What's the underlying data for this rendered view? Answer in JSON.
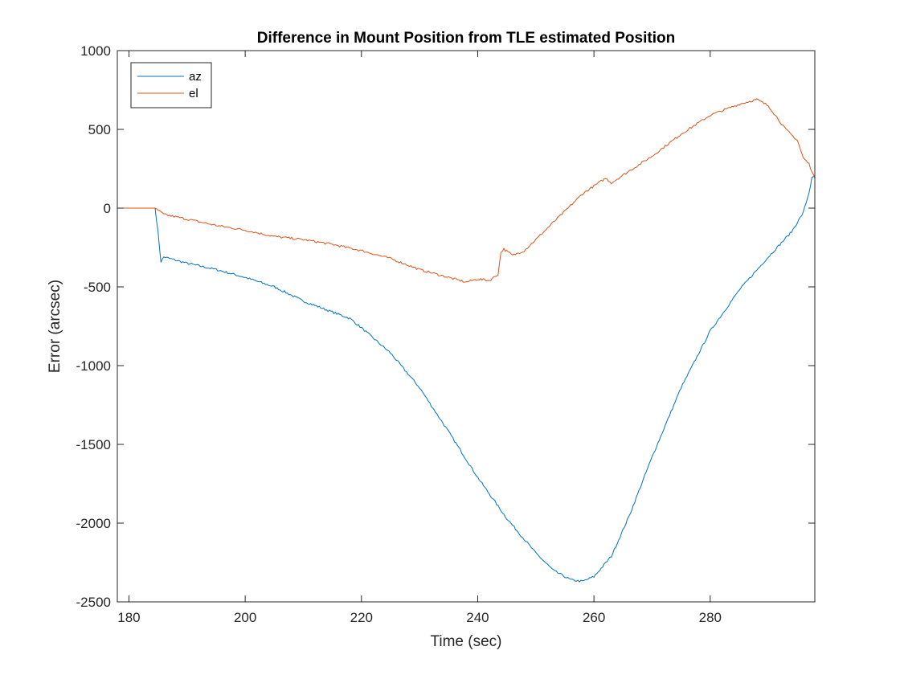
{
  "chart_data": {
    "type": "line",
    "title": "Difference in Mount Position from TLE estimated Position",
    "xlabel": "Time (sec)",
    "ylabel": "Error (arcsec)",
    "xlim": [
      178,
      298
    ],
    "ylim": [
      -2500,
      1000
    ],
    "xticks": [
      180,
      200,
      220,
      240,
      260,
      280
    ],
    "yticks": [
      -2500,
      -2000,
      -1500,
      -1000,
      -500,
      0,
      500,
      1000
    ],
    "xtick_labels": [
      "180",
      "200",
      "220",
      "240",
      "260",
      "280"
    ],
    "ytick_labels": [
      "-2500",
      "-2000",
      "-1500",
      "-1000",
      "-500",
      "0",
      "500",
      "1000"
    ],
    "grid": false,
    "legend_position": "top-left",
    "series": [
      {
        "name": "az",
        "color": "#0072BD",
        "x": [
          178,
          184.5,
          185,
          185.5,
          186,
          188,
          190,
          195,
          200,
          205,
          210,
          215,
          218,
          220,
          225,
          230,
          235,
          240,
          245,
          250,
          253,
          256,
          258,
          260,
          263,
          266,
          270,
          275,
          280,
          285,
          290,
          294,
          296,
          297,
          297.5,
          298
        ],
        "y": [
          0,
          0,
          -150,
          -340,
          -310,
          -330,
          -350,
          -390,
          -440,
          -500,
          -590,
          -660,
          -700,
          -760,
          -920,
          -1140,
          -1420,
          -1710,
          -1970,
          -2190,
          -2300,
          -2360,
          -2370,
          -2340,
          -2210,
          -1960,
          -1580,
          -1140,
          -780,
          -520,
          -310,
          -150,
          -30,
          100,
          190,
          200
        ]
      },
      {
        "name": "el",
        "color": "#D95319",
        "x": [
          178,
          184.5,
          186,
          190,
          195,
          200,
          205,
          210,
          215,
          220,
          225,
          230,
          235,
          238,
          240,
          242,
          243.5,
          244,
          244.5,
          246,
          248,
          250,
          253,
          255,
          258,
          260,
          262,
          263,
          265,
          270,
          275,
          280,
          285,
          288,
          290,
          293,
          295,
          296,
          297,
          298
        ],
        "y": [
          0,
          0,
          -40,
          -70,
          -110,
          -140,
          -180,
          -200,
          -230,
          -270,
          -320,
          -390,
          -440,
          -470,
          -450,
          -460,
          -420,
          -280,
          -260,
          -300,
          -270,
          -200,
          -90,
          -20,
          90,
          140,
          190,
          160,
          210,
          330,
          470,
          590,
          660,
          690,
          650,
          500,
          430,
          320,
          280,
          190
        ]
      }
    ]
  }
}
